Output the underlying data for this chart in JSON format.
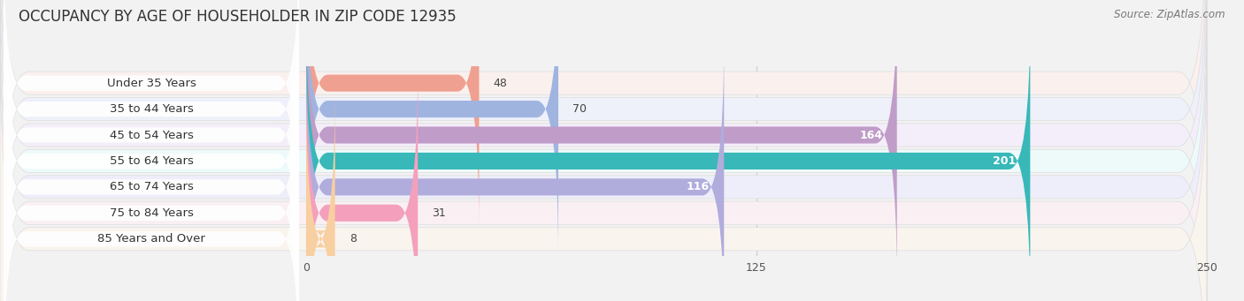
{
  "title": "OCCUPANCY BY AGE OF HOUSEHOLDER IN ZIP CODE 12935",
  "source": "Source: ZipAtlas.com",
  "categories": [
    "Under 35 Years",
    "35 to 44 Years",
    "45 to 54 Years",
    "55 to 64 Years",
    "65 to 74 Years",
    "75 to 84 Years",
    "85 Years and Over"
  ],
  "values": [
    48,
    70,
    164,
    201,
    116,
    31,
    8
  ],
  "bar_colors": [
    "#F0A090",
    "#A0B4E0",
    "#C09CC8",
    "#38B8B8",
    "#B0ACDC",
    "#F4A0BC",
    "#F8CFA0"
  ],
  "bg_color": "#E8E8EC",
  "row_bg_colors": [
    "#FAF0EE",
    "#EEF0FA",
    "#F4EEFA",
    "#EEFAFA",
    "#EEEEFA",
    "#FAF0F4",
    "#FAF4EE"
  ],
  "xlim_left": -85,
  "xlim_right": 250,
  "xticks": [
    0,
    125,
    250
  ],
  "bar_height": 0.65,
  "background_color": "#F2F2F2",
  "title_fontsize": 12,
  "label_fontsize": 9.5,
  "value_fontsize": 9
}
